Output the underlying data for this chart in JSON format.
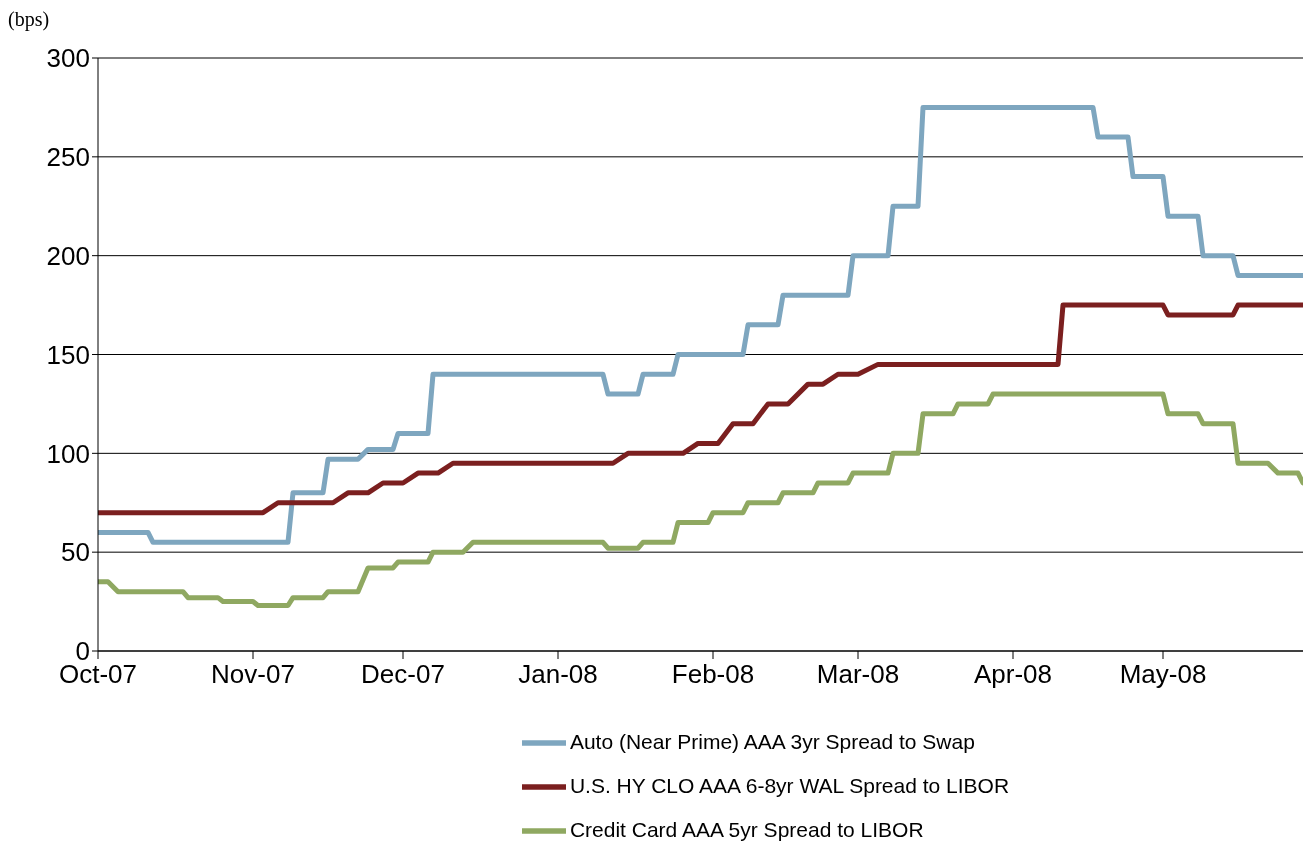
{
  "chart_data": {
    "type": "line",
    "ylabel": "(bps)",
    "xlim": [
      "2007-10-01",
      "2008-05-29"
    ],
    "xticks": [
      {
        "value": "2007-10-01",
        "label": "Oct-07"
      },
      {
        "value": "2007-11-01",
        "label": "Nov-07"
      },
      {
        "value": "2007-12-01",
        "label": "Dec-07"
      },
      {
        "value": "2008-01-01",
        "label": "Jan-08"
      },
      {
        "value": "2008-02-01",
        "label": "Feb-08"
      },
      {
        "value": "2008-03-01",
        "label": "Mar-08"
      },
      {
        "value": "2008-04-01",
        "label": "Apr-08"
      },
      {
        "value": "2008-05-01",
        "label": "May-08"
      }
    ],
    "ylim": [
      0,
      300
    ],
    "yticks": [
      0,
      50,
      100,
      150,
      200,
      250,
      300
    ],
    "grid": "y",
    "legend": "bottom",
    "marker": "none",
    "line_style": "solid",
    "series": [
      {
        "name": "Auto (Near Prime) AAA 3yr Spread to Swap",
        "color": "#7ea6bf",
        "x": [
          "2007-10-01",
          "2007-10-11",
          "2007-10-12",
          "2007-11-08",
          "2007-11-09",
          "2007-11-15",
          "2007-11-16",
          "2007-11-22",
          "2007-11-24",
          "2007-11-29",
          "2007-11-30",
          "2007-12-06",
          "2007-12-07",
          "2008-01-10",
          "2008-01-11",
          "2008-01-17",
          "2008-01-18",
          "2008-01-24",
          "2008-01-25",
          "2008-02-07",
          "2008-02-08",
          "2008-02-14",
          "2008-02-15",
          "2008-02-28",
          "2008-02-29",
          "2008-03-07",
          "2008-03-08",
          "2008-03-13",
          "2008-03-14",
          "2008-04-17",
          "2008-04-18",
          "2008-04-24",
          "2008-04-25",
          "2008-05-01",
          "2008-05-02",
          "2008-05-08",
          "2008-05-09",
          "2008-05-15",
          "2008-05-16",
          "2008-05-29"
        ],
        "values": [
          60,
          60,
          55,
          55,
          80,
          80,
          97,
          97,
          102,
          102,
          110,
          110,
          140,
          140,
          130,
          130,
          140,
          140,
          150,
          150,
          165,
          165,
          180,
          180,
          200,
          200,
          225,
          225,
          275,
          275,
          260,
          260,
          240,
          240,
          220,
          220,
          200,
          200,
          190,
          190
        ]
      },
      {
        "name": "U.S. HY CLO AAA 6-8yr WAL Spread to LIBOR",
        "color": "#7b1f1f",
        "x": [
          "2007-10-01",
          "2007-11-03",
          "2007-11-06",
          "2007-11-17",
          "2007-11-20",
          "2007-11-24",
          "2007-11-27",
          "2007-12-01",
          "2007-12-04",
          "2007-12-08",
          "2007-12-11",
          "2008-01-12",
          "2008-01-15",
          "2008-01-26",
          "2008-01-29",
          "2008-02-02",
          "2008-02-05",
          "2008-02-09",
          "2008-02-12",
          "2008-02-16",
          "2008-02-20",
          "2008-02-23",
          "2008-02-26",
          "2008-03-01",
          "2008-03-05",
          "2008-04-10",
          "2008-04-11",
          "2008-05-01",
          "2008-05-02",
          "2008-05-15",
          "2008-05-16",
          "2008-05-29"
        ],
        "values": [
          70,
          70,
          75,
          75,
          80,
          80,
          85,
          85,
          90,
          90,
          95,
          95,
          100,
          100,
          105,
          105,
          115,
          115,
          125,
          125,
          135,
          135,
          140,
          140,
          145,
          145,
          175,
          175,
          170,
          170,
          175,
          175
        ]
      },
      {
        "name": "Credit Card AAA 5yr Spread to LIBOR",
        "color": "#8fa861",
        "x": [
          "2007-10-01",
          "2007-10-03",
          "2007-10-05",
          "2007-10-18",
          "2007-10-19",
          "2007-10-25",
          "2007-10-26",
          "2007-11-01",
          "2007-11-02",
          "2007-11-08",
          "2007-11-09",
          "2007-11-15",
          "2007-11-16",
          "2007-11-22",
          "2007-11-24",
          "2007-11-29",
          "2007-11-30",
          "2007-12-06",
          "2007-12-07",
          "2007-12-13",
          "2007-12-15",
          "2008-01-10",
          "2008-01-11",
          "2008-01-17",
          "2008-01-18",
          "2008-01-24",
          "2008-01-25",
          "2008-01-31",
          "2008-02-01",
          "2008-02-07",
          "2008-02-08",
          "2008-02-14",
          "2008-02-15",
          "2008-02-21",
          "2008-02-22",
          "2008-02-28",
          "2008-02-29",
          "2008-03-07",
          "2008-03-08",
          "2008-03-13",
          "2008-03-14",
          "2008-03-20",
          "2008-03-21",
          "2008-03-27",
          "2008-03-28",
          "2008-05-01",
          "2008-05-02",
          "2008-05-08",
          "2008-05-09",
          "2008-05-15",
          "2008-05-16",
          "2008-05-22",
          "2008-05-24",
          "2008-05-28",
          "2008-05-29"
        ],
        "values": [
          35,
          35,
          30,
          30,
          27,
          27,
          25,
          25,
          23,
          23,
          27,
          27,
          30,
          30,
          42,
          42,
          45,
          45,
          50,
          50,
          55,
          55,
          52,
          52,
          55,
          55,
          65,
          65,
          70,
          70,
          75,
          75,
          80,
          80,
          85,
          85,
          90,
          90,
          100,
          100,
          120,
          120,
          125,
          125,
          130,
          130,
          120,
          120,
          115,
          115,
          95,
          95,
          90,
          90,
          85
        ]
      }
    ]
  }
}
